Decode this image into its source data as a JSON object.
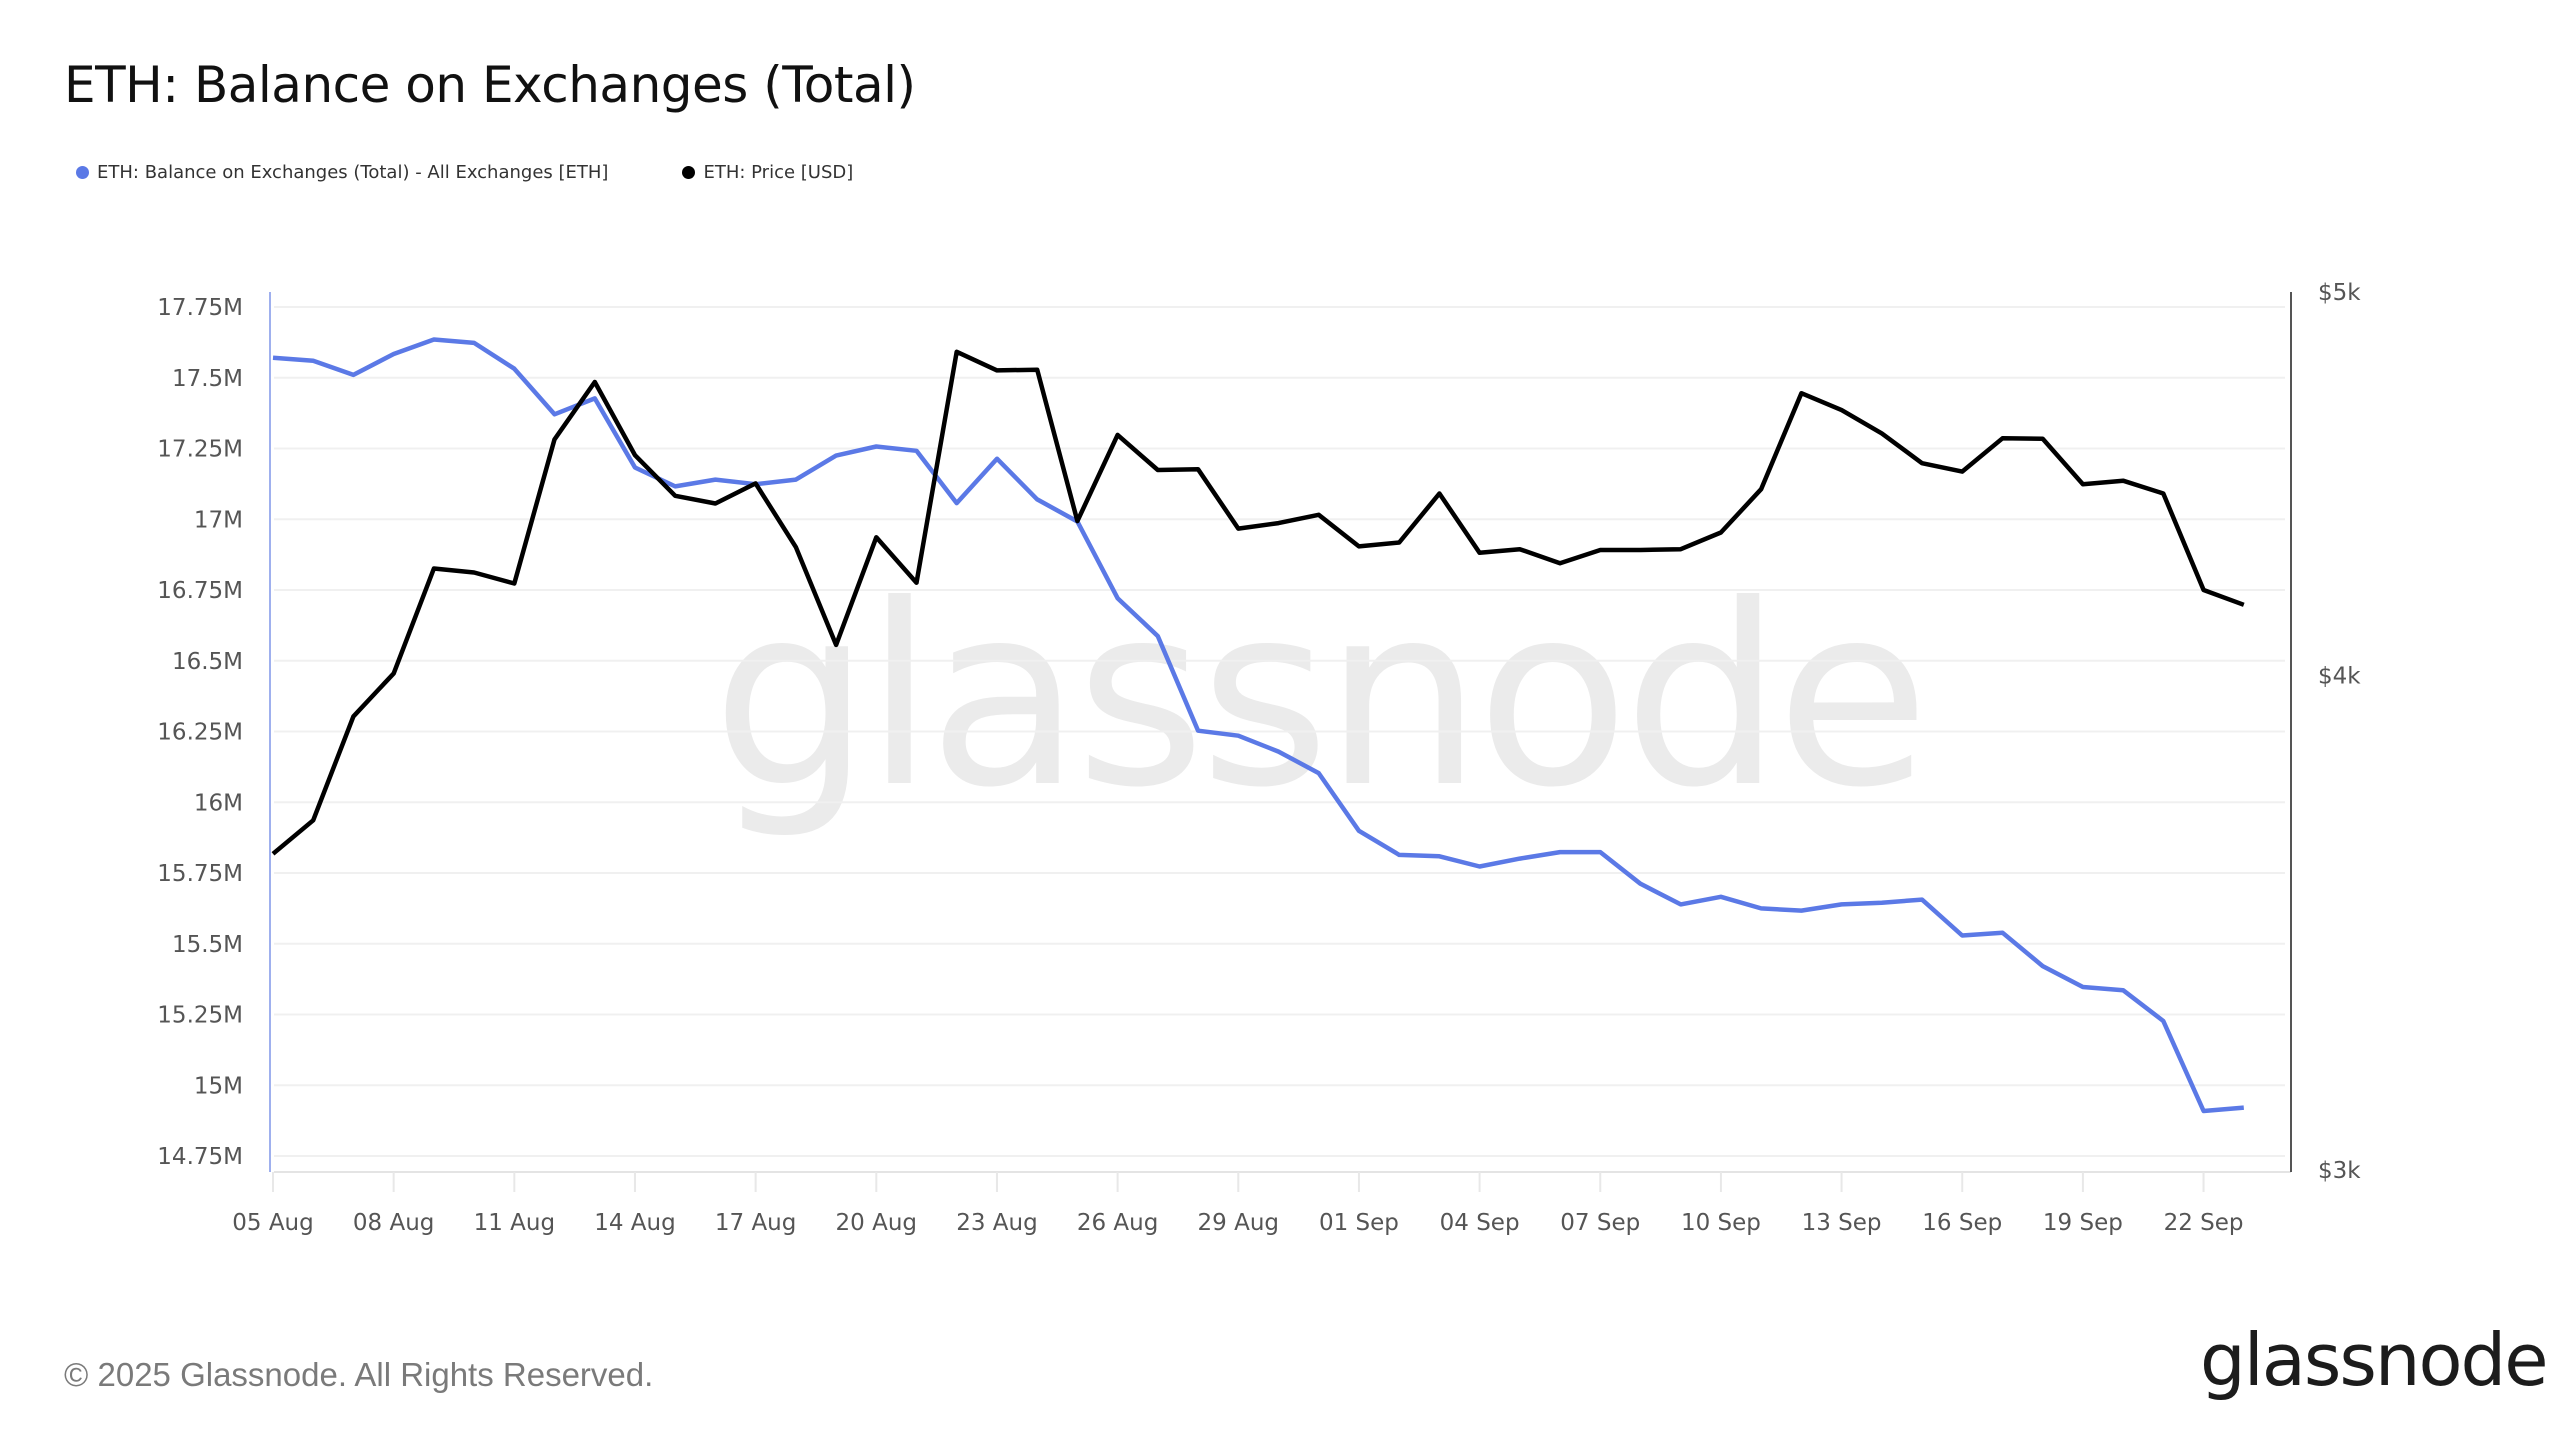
{
  "header": {
    "title": "ETH: Balance on Exchanges (Total)"
  },
  "legend": [
    {
      "label": "ETH: Balance on Exchanges (Total) - All Exchanges [ETH]",
      "color": "#5b79e6"
    },
    {
      "label": "ETH: Price [USD]",
      "color": "#000000"
    }
  ],
  "watermark": "glassnode",
  "footer": {
    "copyright": "© 2025 Glassnode. All Rights Reserved.",
    "brand": "glassnode"
  },
  "colors": {
    "balance": "#5b79e6",
    "price": "#000000",
    "grid": "#f0f0f0",
    "left_axis": "#9fb0ee",
    "right_axis": "#555555",
    "watermark": "#ebebeb"
  },
  "chart_data": {
    "type": "line",
    "title": "ETH: Balance on Exchanges (Total)",
    "xlabel": "",
    "x": [
      "05 Aug",
      "06 Aug",
      "07 Aug",
      "08 Aug",
      "09 Aug",
      "10 Aug",
      "11 Aug",
      "12 Aug",
      "13 Aug",
      "14 Aug",
      "15 Aug",
      "16 Aug",
      "17 Aug",
      "18 Aug",
      "19 Aug",
      "20 Aug",
      "21 Aug",
      "22 Aug",
      "23 Aug",
      "24 Aug",
      "25 Aug",
      "26 Aug",
      "27 Aug",
      "28 Aug",
      "29 Aug",
      "30 Aug",
      "31 Aug",
      "01 Sep",
      "02 Sep",
      "03 Sep",
      "04 Sep",
      "05 Sep",
      "06 Sep",
      "07 Sep",
      "08 Sep",
      "09 Sep",
      "10 Sep",
      "11 Sep",
      "12 Sep",
      "13 Sep",
      "14 Sep",
      "15 Sep",
      "16 Sep",
      "17 Sep",
      "18 Sep",
      "19 Sep",
      "20 Sep",
      "21 Sep",
      "22 Sep",
      "23 Sep"
    ],
    "x_tick_labels": [
      "05 Aug",
      "08 Aug",
      "11 Aug",
      "14 Aug",
      "17 Aug",
      "20 Aug",
      "23 Aug",
      "26 Aug",
      "29 Aug",
      "01 Sep",
      "04 Sep",
      "07 Sep",
      "10 Sep",
      "13 Sep",
      "16 Sep",
      "19 Sep",
      "22 Sep"
    ],
    "series": [
      {
        "name": "ETH: Balance on Exchanges (Total) - All Exchanges [ETH]",
        "axis": "left",
        "unit": "M ETH",
        "color": "#5b79e6",
        "values": [
          17.571,
          17.56,
          17.51,
          17.584,
          17.635,
          17.623,
          17.532,
          17.371,
          17.427,
          17.183,
          17.116,
          17.14,
          17.124,
          17.14,
          17.225,
          17.257,
          17.242,
          17.057,
          17.214,
          17.07,
          16.992,
          16.721,
          16.587,
          16.253,
          16.235,
          16.179,
          16.103,
          15.899,
          15.814,
          15.809,
          15.773,
          15.801,
          15.824,
          15.824,
          15.712,
          15.639,
          15.666,
          15.625,
          15.617,
          15.639,
          15.645,
          15.656,
          15.529,
          15.539,
          15.421,
          15.347,
          15.336,
          15.227,
          14.909,
          14.921
        ]
      },
      {
        "name": "ETH: Price [USD]",
        "axis": "right",
        "unit": "USD",
        "color": "#000000",
        "values": [
          3606,
          3677,
          3906,
          4005,
          4257,
          4247,
          4220,
          4589,
          4745,
          4547,
          4441,
          4421,
          4473,
          4310,
          4072,
          4335,
          4222,
          4829,
          4777,
          4779,
          4376,
          4601,
          4508,
          4510,
          4357,
          4371,
          4392,
          4312,
          4322,
          4447,
          4296,
          4305,
          4270,
          4303,
          4303,
          4305,
          4347,
          4458,
          4714,
          4668,
          4605,
          4526,
          4504,
          4592,
          4591,
          4471,
          4480,
          4447,
          4204,
          4168
        ]
      }
    ],
    "y_left": {
      "label": "",
      "ticks": [
        "17.75M",
        "17.5M",
        "17.25M",
        "17M",
        "16.75M",
        "16.5M",
        "16.25M",
        "16M",
        "15.75M",
        "15.5M",
        "15.25M",
        "15M",
        "14.75M"
      ],
      "tick_values": [
        17.75,
        17.5,
        17.25,
        17,
        16.75,
        16.5,
        16.25,
        16,
        15.75,
        15.5,
        15.25,
        15,
        14.75
      ],
      "ylim": [
        14.7,
        17.8
      ],
      "scale": "linear"
    },
    "y_right": {
      "label": "",
      "ticks": [
        "$5k",
        "$4k",
        "$3k"
      ],
      "tick_values": [
        5000,
        4000,
        3000
      ],
      "ylim": [
        3000,
        5000
      ],
      "scale": "log"
    },
    "grid": true,
    "legend_position": "top-left"
  }
}
